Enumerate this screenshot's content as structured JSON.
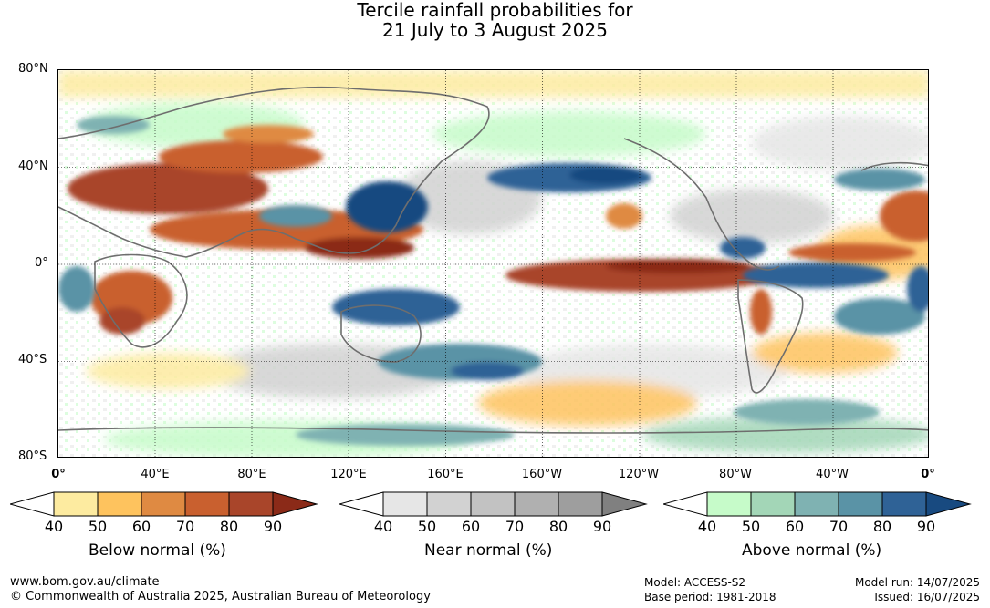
{
  "title": {
    "line1": "Tercile rainfall probabilities for",
    "line2": "21 July to 3 August 2025"
  },
  "axes": {
    "lat_labels": [
      "80°N",
      "40°N",
      "0°",
      "40°S",
      "80°S"
    ],
    "lon_labels": [
      "0°",
      "40°E",
      "80°E",
      "120°E",
      "160°E",
      "160°W",
      "120°W",
      "80°W",
      "40°W",
      "0°"
    ]
  },
  "legends": [
    {
      "title": "Below normal (%)",
      "ticks": [
        "40",
        "50",
        "60",
        "70",
        "80",
        "90"
      ],
      "colors": [
        "#ffffff",
        "#fdeba0",
        "#fec35e",
        "#df8a42",
        "#c9602f",
        "#a9452a",
        "#8b2a18"
      ]
    },
    {
      "title": "Near normal (%)",
      "ticks": [
        "40",
        "50",
        "60",
        "70",
        "80",
        "90"
      ],
      "colors": [
        "#ffffff",
        "#e6e6e6",
        "#d2d2d2",
        "#c2c2c2",
        "#b0b0b0",
        "#9e9e9e",
        "#808080"
      ]
    },
    {
      "title": "Above normal (%)",
      "ticks": [
        "40",
        "50",
        "60",
        "70",
        "80",
        "90"
      ],
      "colors": [
        "#ffffff",
        "#c6fbc9",
        "#a3d6b7",
        "#7fb2b2",
        "#5a93a6",
        "#2f6296",
        "#184a80"
      ]
    }
  ],
  "footer": {
    "url": "www.bom.gov.au/climate",
    "copyright": "© Commonwealth of Australia 2025, Australian Bureau of Meteorology",
    "model": "Model: ACCESS-S2",
    "base_period": "Base period: 1981-2018",
    "model_run": "Model run: 14/07/2025",
    "issued": "Issued: 16/07/2025"
  }
}
